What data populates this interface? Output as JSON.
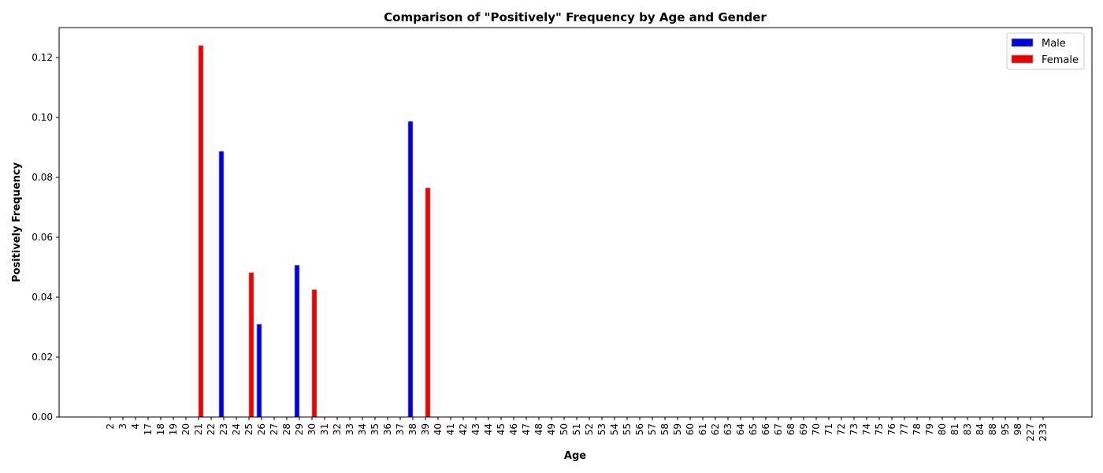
{
  "chart_data": {
    "type": "bar",
    "title": "Comparison of \"Positively\" Frequency by Age and Gender",
    "xlabel": "Age",
    "ylabel": "Positively Frequency",
    "ylim": [
      0,
      0.13
    ],
    "yticks": [
      0.0,
      0.02,
      0.04,
      0.06,
      0.08,
      0.1,
      0.12
    ],
    "ytick_labels": [
      "0.00",
      "0.02",
      "0.04",
      "0.06",
      "0.08",
      "0.10",
      "0.12"
    ],
    "grid": false,
    "legend_position": "top-right",
    "categories": [
      "2",
      "3",
      "4",
      "17",
      "18",
      "19",
      "20",
      "21",
      "22",
      "23",
      "24",
      "25",
      "26",
      "27",
      "28",
      "29",
      "30",
      "31",
      "32",
      "33",
      "34",
      "35",
      "36",
      "37",
      "38",
      "39",
      "40",
      "41",
      "42",
      "43",
      "44",
      "45",
      "46",
      "47",
      "48",
      "49",
      "50",
      "51",
      "52",
      "53",
      "54",
      "55",
      "56",
      "57",
      "58",
      "59",
      "60",
      "61",
      "62",
      "63",
      "64",
      "65",
      "66",
      "67",
      "68",
      "69",
      "70",
      "71",
      "72",
      "73",
      "74",
      "75",
      "76",
      "77",
      "78",
      "79",
      "80",
      "81",
      "83",
      "84",
      "88",
      "95",
      "98",
      "227",
      "233"
    ],
    "series": [
      {
        "name": "Male",
        "color": "#0000dd",
        "values": [
          0,
          0,
          0,
          0,
          0,
          0,
          0,
          0,
          0,
          0.0887,
          0,
          0,
          0.031,
          0,
          0,
          0.0507,
          0,
          0,
          0,
          0,
          0,
          0,
          0,
          0,
          0.0987,
          0,
          0,
          0,
          0,
          0,
          0,
          0,
          0,
          0,
          0,
          0,
          0,
          0,
          0,
          0,
          0,
          0,
          0,
          0,
          0,
          0,
          0,
          0,
          0,
          0,
          0,
          0,
          0,
          0,
          0,
          0,
          0,
          0,
          0,
          0,
          0,
          0,
          0,
          0,
          0,
          0,
          0,
          0,
          0,
          0,
          0,
          0,
          0,
          0,
          0
        ]
      },
      {
        "name": "Female",
        "color": "#ee0000",
        "values": [
          0,
          0,
          0,
          0,
          0,
          0,
          0,
          0.124,
          0,
          0,
          0,
          0.0482,
          0,
          0,
          0,
          0,
          0.0425,
          0,
          0,
          0,
          0,
          0,
          0,
          0,
          0,
          0.0765,
          0,
          0,
          0,
          0,
          0,
          0,
          0,
          0,
          0,
          0,
          0,
          0,
          0,
          0,
          0,
          0,
          0,
          0,
          0,
          0,
          0,
          0,
          0,
          0,
          0,
          0,
          0,
          0,
          0,
          0,
          0,
          0,
          0,
          0,
          0,
          0,
          0,
          0,
          0,
          0,
          0,
          0,
          0,
          0,
          0,
          0,
          0,
          0,
          0
        ]
      }
    ]
  }
}
